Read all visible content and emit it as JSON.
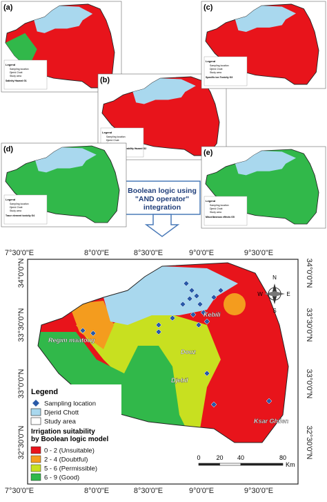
{
  "panels": [
    {
      "label": "(a)",
      "legend_title": "Salinity Hazard G1"
    },
    {
      "label": "(b)",
      "legend_title": "Infiltration and permeability Hazard G2"
    },
    {
      "label": "(c)",
      "legend_title": "Specific ion Toxicity G3"
    },
    {
      "label": "(d)",
      "legend_title": "Trace element toxicity G4"
    },
    {
      "label": "(e)",
      "legend_title": "Miscellaneous effects G5"
    }
  ],
  "arrow_box": {
    "lines": [
      "Boolean logic using",
      "\"AND operator\"",
      "integration"
    ]
  },
  "main_map": {
    "lon_labels": [
      "7°30'0\"E",
      "8°0'0\"E",
      "8°30'0\"E",
      "9°0'0\"E",
      "9°30'0\"E"
    ],
    "lat_labels": [
      "34°0'0\"N",
      "33°30'0\"N",
      "33°0'0\"N",
      "32°30'0\"N"
    ],
    "places": [
      "Regim maatoug",
      "Kebili",
      "Douz",
      "Djebil",
      "Ksar Ghilen"
    ],
    "legend": {
      "title": "Legend",
      "items": [
        "Sampling location",
        "Djerid Chott",
        "Study area"
      ],
      "class_title": [
        "Irrigation suitability",
        "by Boolean logic model"
      ],
      "classes": [
        "0 - 2 (Unsuitable)",
        "2 - 4 (Doubtful)",
        "5 - 6 (Permissible)",
        "6 - 9 (Good)"
      ]
    },
    "scale": {
      "ticks": [
        0,
        20,
        40,
        80
      ],
      "unit": "Km"
    },
    "compass": [
      "N",
      "S",
      "E",
      "W"
    ]
  }
}
